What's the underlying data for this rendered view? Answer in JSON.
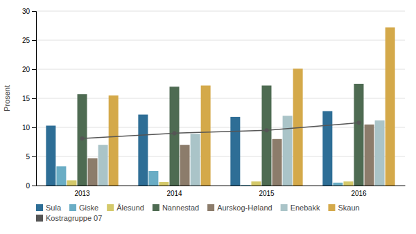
{
  "chart_data": {
    "type": "bar",
    "ylabel": "Prosent",
    "categories": [
      "2013",
      "2014",
      "2015",
      "2016"
    ],
    "series": [
      {
        "name": "Sula",
        "color": "#2e6e96",
        "values": [
          10.3,
          12.2,
          11.8,
          12.8
        ]
      },
      {
        "name": "Giske",
        "color": "#6aadc5",
        "values": [
          3.3,
          2.5,
          0.1,
          0.5
        ]
      },
      {
        "name": "Ålesund",
        "color": "#d4c96a",
        "values": [
          0.9,
          0.6,
          0.7,
          0.7
        ]
      },
      {
        "name": "Nannestad",
        "color": "#4e6b52",
        "values": [
          15.7,
          17.0,
          17.2,
          17.5
        ]
      },
      {
        "name": "Aurskog-Høland",
        "color": "#8c7c6b",
        "values": [
          4.7,
          7.0,
          8.0,
          10.5
        ]
      },
      {
        "name": "Enebakk",
        "color": "#aac4c8",
        "values": [
          7.0,
          8.9,
          12.0,
          11.2
        ]
      },
      {
        "name": "Skaun",
        "color": "#d4a94a",
        "values": [
          15.5,
          17.2,
          20.1,
          27.2
        ]
      },
      {
        "name": "Kostragruppe 07",
        "color": "#555555",
        "type": "line",
        "marker": "circle",
        "values": [
          8.1,
          9.0,
          9.5,
          10.8
        ]
      }
    ],
    "ylim": [
      0,
      30
    ],
    "yticks": [
      0,
      5,
      10,
      15,
      20,
      25,
      30
    ],
    "grid": true,
    "legend": "bottom"
  }
}
